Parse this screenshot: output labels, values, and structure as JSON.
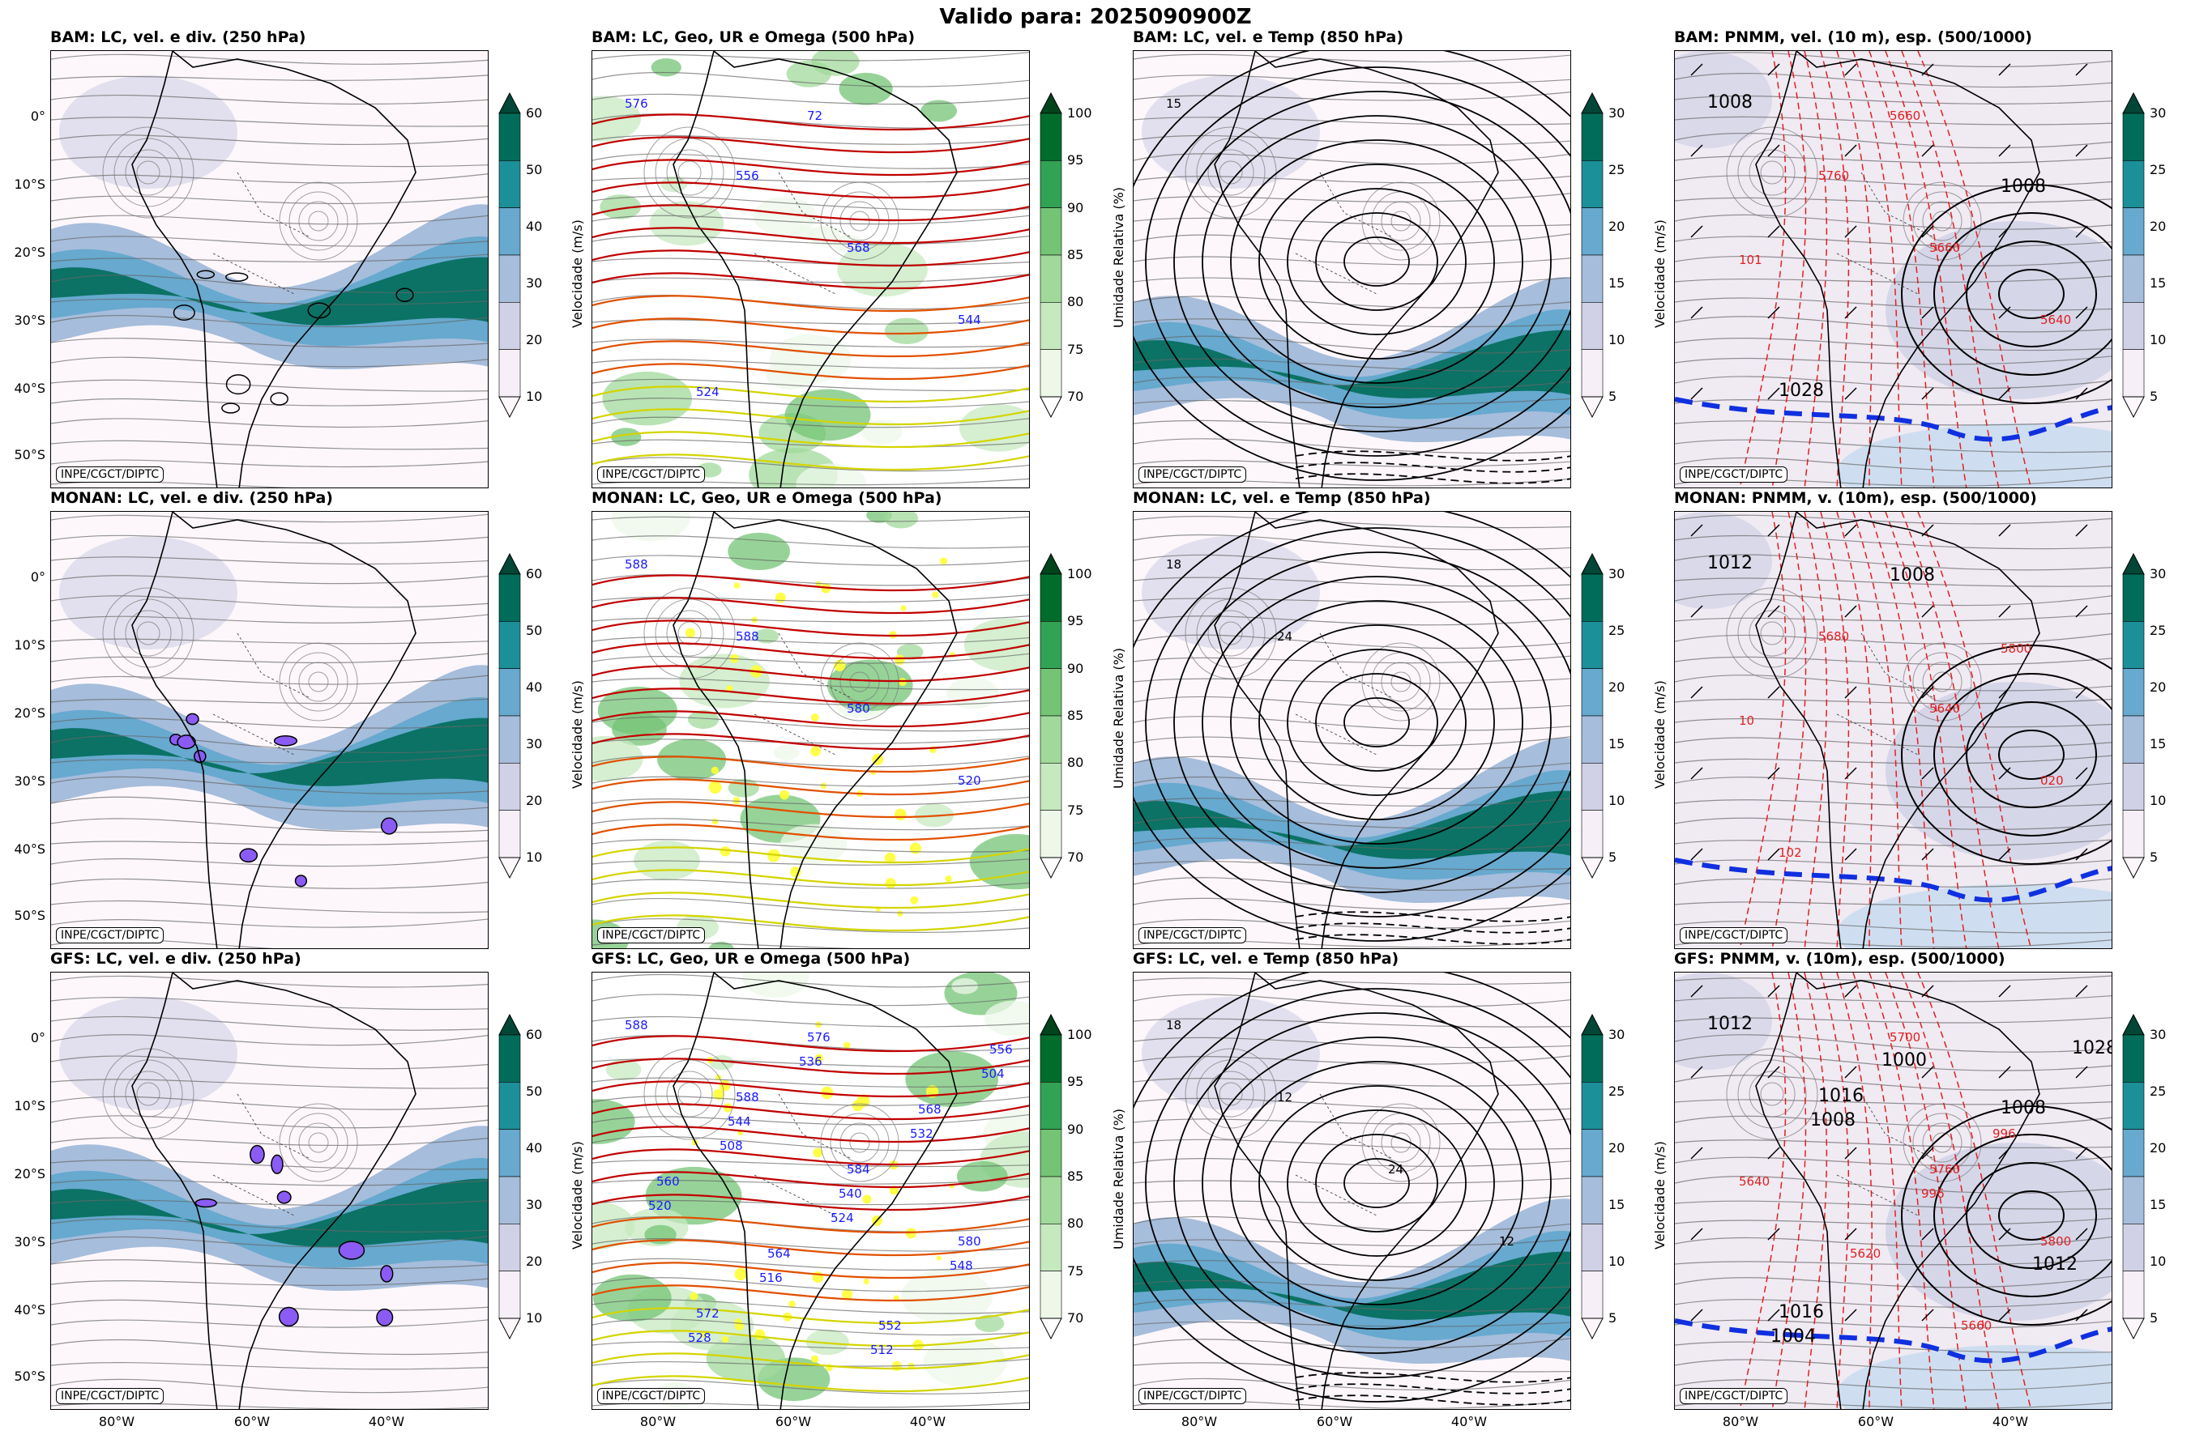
{
  "main_title": "Valido para: 2025090900Z",
  "credit": "INPE/CGCT/DIPTC",
  "lat_labels": [
    "0°",
    "10°S",
    "20°S",
    "30°S",
    "40°S",
    "50°S"
  ],
  "lon_labels": [
    "80°W",
    "60°W",
    "40°W"
  ],
  "columns": [
    {
      "cbar_label": "Velocidade (m/s)",
      "ticks": [
        "60",
        "50",
        "40",
        "30",
        "20",
        "10"
      ],
      "colors": [
        "#016c59",
        "#1c9099",
        "#67a9cf",
        "#a6bddb",
        "#d0d1e6",
        "#f6eff7"
      ],
      "tip": "#014636",
      "base": "#fdf7fb"
    },
    {
      "cbar_label": "Umidade Relativa (%)",
      "ticks": [
        "100",
        "95",
        "90",
        "85",
        "80",
        "75",
        "70"
      ],
      "colors": [
        "#006d2c",
        "#31a354",
        "#74c476",
        "#a1d99b",
        "#c7e9c0",
        "#edf8e9"
      ],
      "tip": "#00441b",
      "base": "#ffffff"
    },
    {
      "cbar_label": "Velocidade (m/s)",
      "ticks": [
        "30",
        "25",
        "20",
        "15",
        "10",
        "5"
      ],
      "colors": [
        "#016c59",
        "#1c9099",
        "#67a9cf",
        "#a6bddb",
        "#d0d1e6",
        "#f6eff7"
      ],
      "tip": "#014636",
      "base": "#fdf7fb"
    },
    {
      "cbar_label": "Velocidade (m/s)",
      "ticks": [
        "30",
        "25",
        "20",
        "15",
        "10",
        "5"
      ],
      "colors": [
        "#016c59",
        "#1c9099",
        "#67a9cf",
        "#a6bddb",
        "#d0d1e6",
        "#f6eff7"
      ],
      "tip": "#014636",
      "base": "#fdf7fb"
    }
  ],
  "rows": [
    {
      "panels": [
        {
          "title": "BAM: LC, vel. e div. (250 hPa)",
          "labels": []
        },
        {
          "title": "BAM: LC, Geo, UR e Omega (500 hPa)",
          "labels": [
            "576",
            "556",
            "568",
            "544",
            "524",
            "72"
          ]
        },
        {
          "title": "BAM: LC, vel. e Temp (850 hPa)",
          "labels": [
            "15"
          ]
        },
        {
          "title": "BAM: PNMM, vel. (10 m), esp. (500/1000)",
          "labels": [
            "1008",
            "5760",
            "5660",
            "5640",
            "1028",
            "5660",
            "1008",
            "101"
          ]
        }
      ]
    },
    {
      "panels": [
        {
          "title": "MONAN: LC, vel. e div. (250 hPa)",
          "labels": []
        },
        {
          "title": "MONAN: LC, Geo, UR e Omega (500 hPa)",
          "labels": [
            "588",
            "588",
            "580",
            "520"
          ]
        },
        {
          "title": "MONAN: LC, vel. e Temp (850 hPa)",
          "labels": [
            "18",
            "24"
          ]
        },
        {
          "title": "MONAN: PNMM, v. (10m), esp. (500/1000)",
          "labels": [
            "1012",
            "5680",
            "5640",
            "020",
            "102",
            "1008",
            "5800",
            "10"
          ]
        }
      ]
    },
    {
      "panels": [
        {
          "title": "GFS: LC, vel. e div. (250 hPa)",
          "labels": []
        },
        {
          "title": "GFS: LC, Geo, UR e Omega (500 hPa)",
          "labels": [
            "588",
            "588",
            "584",
            "580",
            "572",
            "576",
            "568",
            "560",
            "564",
            "552",
            "556",
            "544",
            "540",
            "548",
            "528",
            "536",
            "532",
            "520",
            "516",
            "512",
            "504",
            "508",
            "524"
          ]
        },
        {
          "title": "GFS: LC, vel. e Temp (850 hPa)",
          "labels": [
            "18",
            "12",
            "24",
            "12"
          ]
        },
        {
          "title": "GFS: PNMM, v. (10m), esp. (500/1000)",
          "labels": [
            "1012",
            "1016",
            "5760",
            "5800",
            "1016",
            "5700",
            "1008",
            "5640",
            "5620",
            "5660",
            "1028",
            "1008",
            "996",
            "1012",
            "1004",
            "1000",
            "996"
          ]
        }
      ]
    }
  ]
}
